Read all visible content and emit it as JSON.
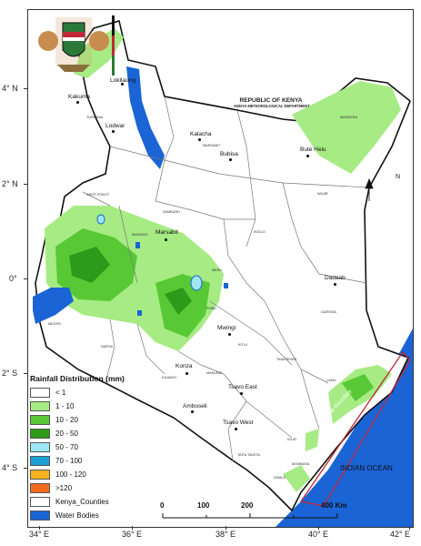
{
  "header": {
    "country": "REPUBLIC OF KENYA",
    "department": "KENYA METEOROLOGICAL DEPARTMENT"
  },
  "axes": {
    "lat_ticks": [
      "4° N",
      "2° N",
      "0°",
      "2° S",
      "4° S"
    ],
    "lon_ticks": [
      "34° E",
      "36° E",
      "38° E",
      "40° E",
      "42° E"
    ]
  },
  "cities": [
    {
      "name": "Lokitaung"
    },
    {
      "name": "Kakuma"
    },
    {
      "name": "Lodwar"
    },
    {
      "name": "Kalacha"
    },
    {
      "name": "Bubisa"
    },
    {
      "name": "Bute Helu"
    },
    {
      "name": "Marsabit"
    },
    {
      "name": "Dadaab"
    },
    {
      "name": "Mwingi"
    },
    {
      "name": "Konza"
    },
    {
      "name": "Tsavo East"
    },
    {
      "name": "Amboseli"
    },
    {
      "name": "Tsavo West"
    }
  ],
  "county_labels": [
    "TURKANA",
    "MARSABIT",
    "MANDERA",
    "WAJIR",
    "ISIOLO",
    "GARISSA",
    "KITUI",
    "TANA RIVER",
    "LAMU",
    "KILIFI",
    "MOMBASA",
    "KWALE",
    "TAITA TAVETA",
    "MAKUENI",
    "KAJIADO",
    "NAROK",
    "MIGORI",
    "SAMBURU",
    "MERU",
    "EMBU",
    "WEST POKOT",
    "BARINGO"
  ],
  "legend": {
    "title": "Rainfall Distribution (mm)",
    "items": [
      {
        "label": "< 1",
        "color": "#ffffff"
      },
      {
        "label": "1 - 10",
        "color": "#a6eb83"
      },
      {
        "label": "10 - 20",
        "color": "#58c935"
      },
      {
        "label": "20 - 50",
        "color": "#2c9b1a"
      },
      {
        "label": "50 - 70",
        "color": "#9fe6f5"
      },
      {
        "label": "70 - 100",
        "color": "#1b9fd4"
      },
      {
        "label": "100 - 120",
        "color": "#f7b21d"
      },
      {
        "label": ">120",
        "color": "#f26b1d"
      },
      {
        "label": "Kenya_Counties",
        "color": "#ffffff"
      },
      {
        "label": "Water Bodies",
        "color": "#1a64d6"
      }
    ]
  },
  "ocean_label": "INDIAN OCEAN",
  "boundary_label": "Territorial Boundary",
  "scale": {
    "labels": [
      "0",
      "100",
      "200",
      "400 Km"
    ]
  },
  "north_label": "N",
  "colors": {
    "ocean": "#1a64d6",
    "boundary": "#c0283a",
    "light_green": "#a6eb83",
    "mid_green": "#58c935",
    "dark_green": "#2c9b1a"
  }
}
